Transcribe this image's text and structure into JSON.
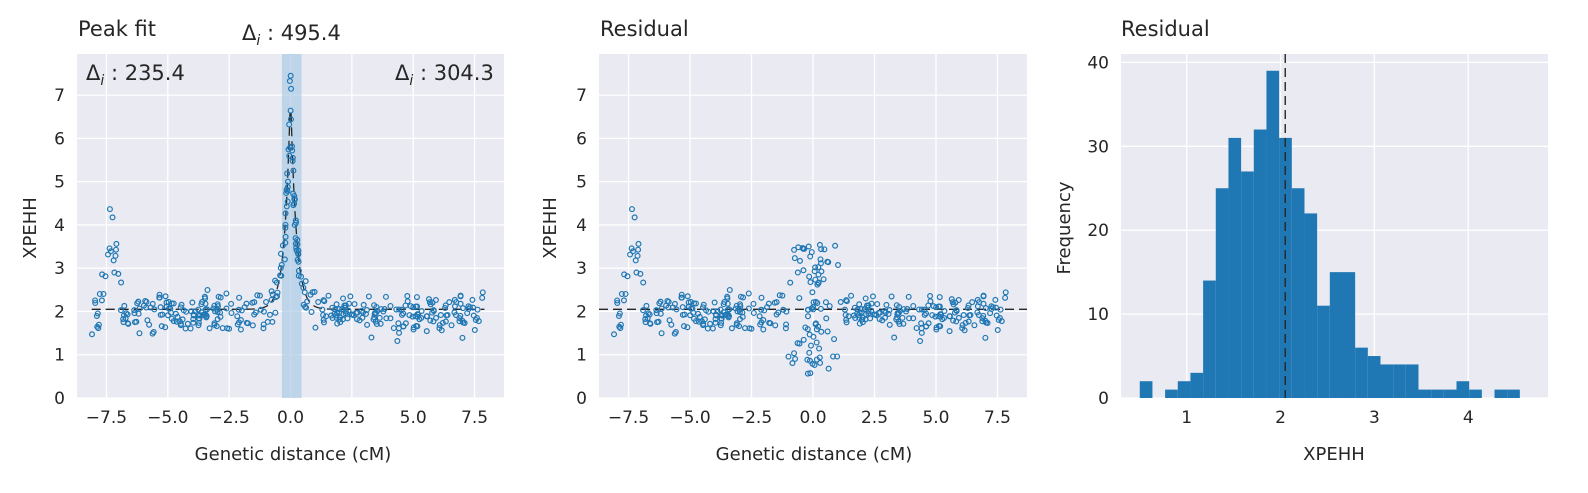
{
  "colors": {
    "axes_bg": "#eaeaf2",
    "grid": "#ffffff",
    "marker": "#1f77b4",
    "bar": "#1f77b4",
    "peak_band": "#a6c7e3",
    "line": "#262626"
  },
  "chart_data": [
    {
      "type": "scatter",
      "title": "Peak fit",
      "xlabel": "Genetic distance (cM)",
      "ylabel": "XPEHH",
      "xlim": [
        -8.7,
        8.7
      ],
      "ylim": [
        0,
        7.95
      ],
      "xticks": [
        -7.5,
        -5.0,
        -2.5,
        0.0,
        2.5,
        5.0,
        7.5
      ],
      "xtick_labels": [
        "−7.5",
        "−5.0",
        "−2.5",
        "0.0",
        "2.5",
        "5.0",
        "7.5"
      ],
      "yticks": [
        0,
        1,
        2,
        3,
        4,
        5,
        6,
        7
      ],
      "ytick_labels": [
        "0",
        "1",
        "2",
        "3",
        "4",
        "5",
        "6",
        "7"
      ],
      "grid": true,
      "baseline": 2.05,
      "peak_band": [
        -0.35,
        0.45
      ],
      "peak_center": 0.0,
      "peak_height": 5.0,
      "peak_width_cM": 0.23,
      "annotations": {
        "top": "495.4",
        "left": "235.4",
        "right": "304.3"
      },
      "point_count": 370,
      "points_description": "scattered XPEHH values around baseline ~2 with sharp peak near 0 cM reaching ~7.6 and secondary cluster near -7.3 cM up to ~4.6"
    },
    {
      "type": "scatter",
      "title": "Residual",
      "xlabel": "Genetic distance (cM)",
      "ylabel": "XPEHH",
      "xlim": [
        -8.7,
        8.7
      ],
      "ylim": [
        0,
        7.95
      ],
      "xticks": [
        -7.5,
        -5.0,
        -2.5,
        0.0,
        2.5,
        5.0,
        7.5
      ],
      "xtick_labels": [
        "−7.5",
        "−5.0",
        "−2.5",
        "0.0",
        "2.5",
        "5.0",
        "7.5"
      ],
      "yticks": [
        0,
        1,
        2,
        3,
        4,
        5,
        6,
        7
      ],
      "ytick_labels": [
        "0",
        "1",
        "2",
        "3",
        "4",
        "5",
        "6",
        "7"
      ],
      "grid": true,
      "baseline": 2.05
    },
    {
      "type": "bar",
      "title": "Residual",
      "xlabel": "XPEHH",
      "ylabel": "Frequency",
      "xlim": [
        0.3,
        4.85
      ],
      "ylim": [
        0,
        41
      ],
      "xticks": [
        1,
        2,
        3,
        4
      ],
      "xtick_labels": [
        "1",
        "2",
        "3",
        "4"
      ],
      "yticks": [
        0,
        10,
        20,
        30,
        40
      ],
      "ytick_labels": [
        "0",
        "10",
        "20",
        "30",
        "40"
      ],
      "grid": true,
      "bin_start": 0.5,
      "bin_width": 0.135,
      "counts": [
        2,
        0,
        1,
        2,
        3,
        14,
        25,
        31,
        27,
        32,
        39,
        31,
        25,
        22,
        11,
        15,
        15,
        6,
        5,
        4,
        4,
        4,
        1,
        1,
        1,
        2,
        1,
        0,
        1,
        1
      ],
      "mean_line": 2.05
    }
  ]
}
